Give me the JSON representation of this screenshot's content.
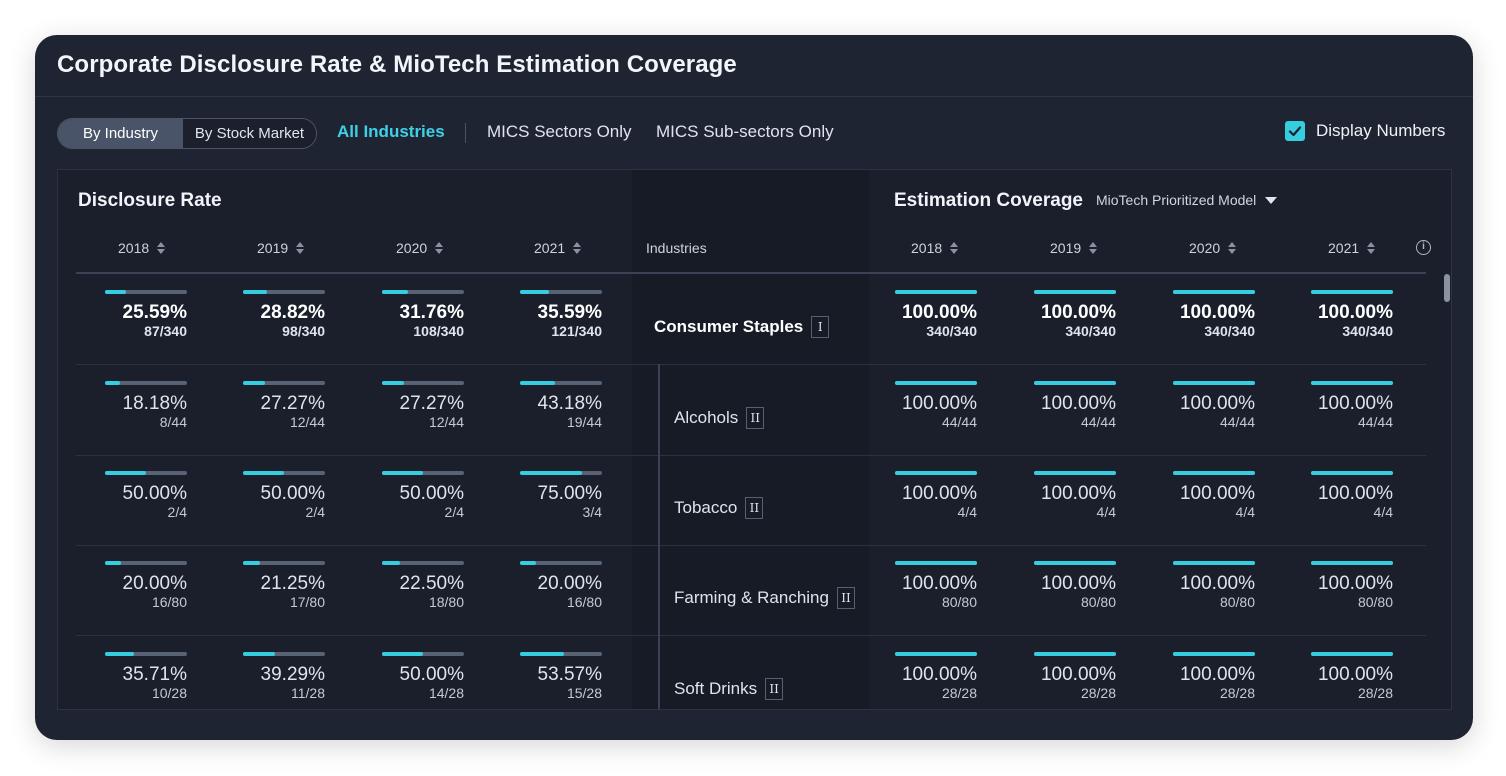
{
  "title": "Corporate Disclosure Rate & MioTech Estimation Coverage",
  "toolbar": {
    "segments": [
      "By Industry",
      "By Stock Market"
    ],
    "active_segment": "By Industry",
    "filters": [
      "All Industries",
      "MICS Sectors Only",
      "MICS Sub-sectors Only"
    ],
    "active_filter": "All Industries",
    "display_numbers_label": "Display Numbers",
    "display_numbers_checked": true
  },
  "disclosure": {
    "title": "Disclosure Rate",
    "years": [
      "2018",
      "2019",
      "2020",
      "2021"
    ]
  },
  "industries_header": "Industries",
  "estimation": {
    "title": "Estimation Coverage",
    "model": "MioTech Prioritized Model",
    "years": [
      "2018",
      "2019",
      "2020",
      "2021"
    ]
  },
  "accent_color": "#37cde0",
  "rows": [
    {
      "industry": "Consumer Staples",
      "level": "I",
      "parent": true,
      "disclosure": [
        {
          "pct": "25.59%",
          "frac": "87/340",
          "value": 0.2559
        },
        {
          "pct": "28.82%",
          "frac": "98/340",
          "value": 0.2882
        },
        {
          "pct": "31.76%",
          "frac": "108/340",
          "value": 0.3176
        },
        {
          "pct": "35.59%",
          "frac": "121/340",
          "value": 0.3559
        }
      ],
      "coverage": [
        {
          "pct": "100.00%",
          "frac": "340/340",
          "value": 1.0
        },
        {
          "pct": "100.00%",
          "frac": "340/340",
          "value": 1.0
        },
        {
          "pct": "100.00%",
          "frac": "340/340",
          "value": 1.0
        },
        {
          "pct": "100.00%",
          "frac": "340/340",
          "value": 1.0
        }
      ]
    },
    {
      "industry": "Alcohols",
      "level": "II",
      "parent": false,
      "disclosure": [
        {
          "pct": "18.18%",
          "frac": "8/44",
          "value": 0.1818
        },
        {
          "pct": "27.27%",
          "frac": "12/44",
          "value": 0.2727
        },
        {
          "pct": "27.27%",
          "frac": "12/44",
          "value": 0.2727
        },
        {
          "pct": "43.18%",
          "frac": "19/44",
          "value": 0.4318
        }
      ],
      "coverage": [
        {
          "pct": "100.00%",
          "frac": "44/44",
          "value": 1.0
        },
        {
          "pct": "100.00%",
          "frac": "44/44",
          "value": 1.0
        },
        {
          "pct": "100.00%",
          "frac": "44/44",
          "value": 1.0
        },
        {
          "pct": "100.00%",
          "frac": "44/44",
          "value": 1.0
        }
      ]
    },
    {
      "industry": "Tobacco",
      "level": "II",
      "parent": false,
      "disclosure": [
        {
          "pct": "50.00%",
          "frac": "2/4",
          "value": 0.5
        },
        {
          "pct": "50.00%",
          "frac": "2/4",
          "value": 0.5
        },
        {
          "pct": "50.00%",
          "frac": "2/4",
          "value": 0.5
        },
        {
          "pct": "75.00%",
          "frac": "3/4",
          "value": 0.75
        }
      ],
      "coverage": [
        {
          "pct": "100.00%",
          "frac": "4/4",
          "value": 1.0
        },
        {
          "pct": "100.00%",
          "frac": "4/4",
          "value": 1.0
        },
        {
          "pct": "100.00%",
          "frac": "4/4",
          "value": 1.0
        },
        {
          "pct": "100.00%",
          "frac": "4/4",
          "value": 1.0
        }
      ]
    },
    {
      "industry": "Farming & Ranching",
      "level": "II",
      "parent": false,
      "disclosure": [
        {
          "pct": "20.00%",
          "frac": "16/80",
          "value": 0.2
        },
        {
          "pct": "21.25%",
          "frac": "17/80",
          "value": 0.2125
        },
        {
          "pct": "22.50%",
          "frac": "18/80",
          "value": 0.225
        },
        {
          "pct": "20.00%",
          "frac": "16/80",
          "value": 0.2
        }
      ],
      "coverage": [
        {
          "pct": "100.00%",
          "frac": "80/80",
          "value": 1.0
        },
        {
          "pct": "100.00%",
          "frac": "80/80",
          "value": 1.0
        },
        {
          "pct": "100.00%",
          "frac": "80/80",
          "value": 1.0
        },
        {
          "pct": "100.00%",
          "frac": "80/80",
          "value": 1.0
        }
      ]
    },
    {
      "industry": "Soft Drinks",
      "level": "II",
      "parent": false,
      "disclosure": [
        {
          "pct": "35.71%",
          "frac": "10/28",
          "value": 0.3571
        },
        {
          "pct": "39.29%",
          "frac": "11/28",
          "value": 0.3929
        },
        {
          "pct": "50.00%",
          "frac": "14/28",
          "value": 0.5
        },
        {
          "pct": "53.57%",
          "frac": "15/28",
          "value": 0.5357
        }
      ],
      "coverage": [
        {
          "pct": "100.00%",
          "frac": "28/28",
          "value": 1.0
        },
        {
          "pct": "100.00%",
          "frac": "28/28",
          "value": 1.0
        },
        {
          "pct": "100.00%",
          "frac": "28/28",
          "value": 1.0
        },
        {
          "pct": "100.00%",
          "frac": "28/28",
          "value": 1.0
        }
      ]
    }
  ]
}
